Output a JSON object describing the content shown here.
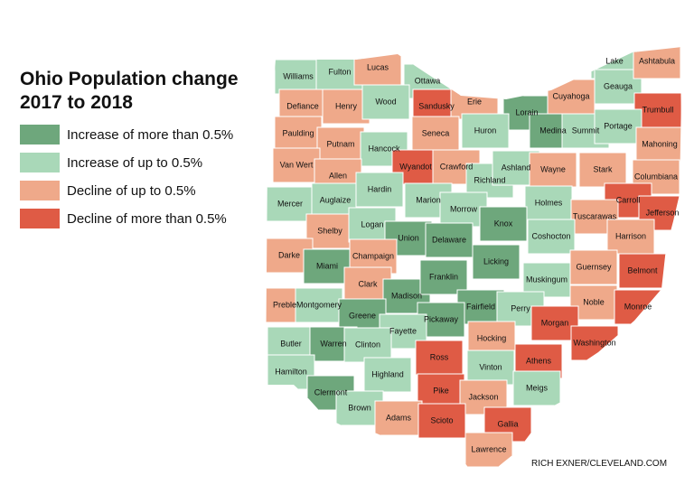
{
  "title": [
    "Ohio Population change",
    "2017 to 2018"
  ],
  "legend": [
    {
      "label": "Increase of more than 0.5%",
      "color": "#6ea77c"
    },
    {
      "label": "Increase of up to 0.5%",
      "color": "#a9d8b8"
    },
    {
      "label": "Decline of up to 0.5%",
      "color": "#efa98a"
    },
    {
      "label": "Decline of more than 0.5%",
      "color": "#df5b45"
    }
  ],
  "counties": [
    {
      "name": "Williams",
      "class": 1
    },
    {
      "name": "Fulton",
      "class": 1
    },
    {
      "name": "Lucas",
      "class": 2
    },
    {
      "name": "Ottawa",
      "class": 1
    },
    {
      "name": "Sandusky",
      "class": 3
    },
    {
      "name": "Erie",
      "class": 2
    },
    {
      "name": "Lorain",
      "class": 0
    },
    {
      "name": "Cuyahoga",
      "class": 2
    },
    {
      "name": "Lake",
      "class": 1
    },
    {
      "name": "Geauga",
      "class": 1
    },
    {
      "name": "Ashtabula",
      "class": 2
    },
    {
      "name": "Trumbull",
      "class": 3
    },
    {
      "name": "Defiance",
      "class": 2
    },
    {
      "name": "Henry",
      "class": 2
    },
    {
      "name": "Wood",
      "class": 1
    },
    {
      "name": "Huron",
      "class": 1
    },
    {
      "name": "Medina",
      "class": 0
    },
    {
      "name": "Summit",
      "class": 1
    },
    {
      "name": "Portage",
      "class": 1
    },
    {
      "name": "Paulding",
      "class": 2
    },
    {
      "name": "Putnam",
      "class": 2
    },
    {
      "name": "Hancock",
      "class": 1
    },
    {
      "name": "Seneca",
      "class": 2
    },
    {
      "name": "Mahoning",
      "class": 2
    },
    {
      "name": "Van Wert",
      "class": 2
    },
    {
      "name": "Allen",
      "class": 2
    },
    {
      "name": "Wyandot",
      "class": 3
    },
    {
      "name": "Crawford",
      "class": 2
    },
    {
      "name": "Richland",
      "class": 1
    },
    {
      "name": "Ashland",
      "class": 1
    },
    {
      "name": "Wayne",
      "class": 2
    },
    {
      "name": "Stark",
      "class": 2
    },
    {
      "name": "Columbiana",
      "class": 2
    },
    {
      "name": "Mercer",
      "class": 1
    },
    {
      "name": "Auglaize",
      "class": 1
    },
    {
      "name": "Hardin",
      "class": 1
    },
    {
      "name": "Marion",
      "class": 1
    },
    {
      "name": "Morrow",
      "class": 1
    },
    {
      "name": "Holmes",
      "class": 1
    },
    {
      "name": "Carroll",
      "class": 3
    },
    {
      "name": "Tuscarawas",
      "class": 2
    },
    {
      "name": "Jefferson",
      "class": 3
    },
    {
      "name": "Shelby",
      "class": 2
    },
    {
      "name": "Logan",
      "class": 1
    },
    {
      "name": "Union",
      "class": 0
    },
    {
      "name": "Delaware",
      "class": 0
    },
    {
      "name": "Knox",
      "class": 0
    },
    {
      "name": "Coshocton",
      "class": 1
    },
    {
      "name": "Harrison",
      "class": 2
    },
    {
      "name": "Darke",
      "class": 2
    },
    {
      "name": "Miami",
      "class": 0
    },
    {
      "name": "Champaign",
      "class": 2
    },
    {
      "name": "Licking",
      "class": 0
    },
    {
      "name": "Muskingum",
      "class": 1
    },
    {
      "name": "Guernsey",
      "class": 2
    },
    {
      "name": "Belmont",
      "class": 3
    },
    {
      "name": "Clark",
      "class": 2
    },
    {
      "name": "Madison",
      "class": 0
    },
    {
      "name": "Franklin",
      "class": 0
    },
    {
      "name": "Preble",
      "class": 2
    },
    {
      "name": "Montgomery",
      "class": 1
    },
    {
      "name": "Greene",
      "class": 0
    },
    {
      "name": "Fairfield",
      "class": 0
    },
    {
      "name": "Perry",
      "class": 1
    },
    {
      "name": "Noble",
      "class": 2
    },
    {
      "name": "Monroe",
      "class": 3
    },
    {
      "name": "Pickaway",
      "class": 0
    },
    {
      "name": "Morgan",
      "class": 3
    },
    {
      "name": "Fayette",
      "class": 1
    },
    {
      "name": "Butler",
      "class": 1
    },
    {
      "name": "Warren",
      "class": 0
    },
    {
      "name": "Clinton",
      "class": 1
    },
    {
      "name": "Hocking",
      "class": 2
    },
    {
      "name": "Washington",
      "class": 3
    },
    {
      "name": "Ross",
      "class": 3
    },
    {
      "name": "Athens",
      "class": 3
    },
    {
      "name": "Vinton",
      "class": 1
    },
    {
      "name": "Hamilton",
      "class": 1
    },
    {
      "name": "Highland",
      "class": 1
    },
    {
      "name": "Clermont",
      "class": 0
    },
    {
      "name": "Pike",
      "class": 3
    },
    {
      "name": "Jackson",
      "class": 2
    },
    {
      "name": "Meigs",
      "class": 1
    },
    {
      "name": "Brown",
      "class": 1
    },
    {
      "name": "Adams",
      "class": 2
    },
    {
      "name": "Scioto",
      "class": 3
    },
    {
      "name": "Gallia",
      "class": 3
    },
    {
      "name": "Lawrence",
      "class": 2
    }
  ],
  "credit": "RICH EXNER/CLEVELAND.COM"
}
